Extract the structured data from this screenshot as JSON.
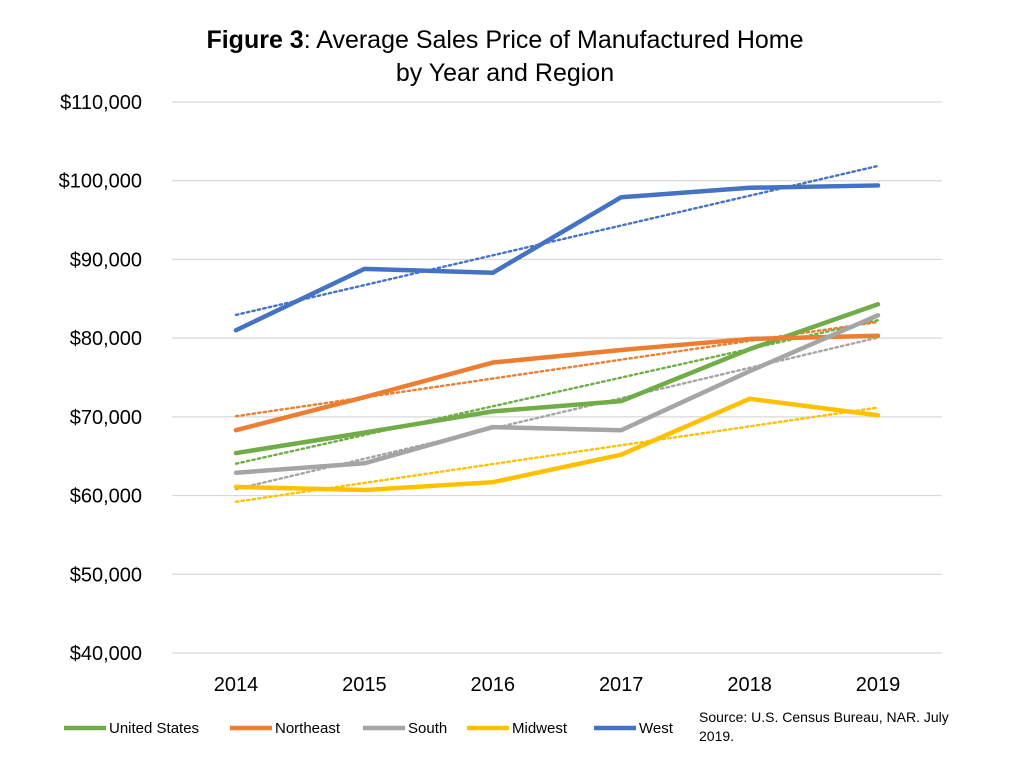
{
  "title": {
    "prefix": "Figure 3",
    "rest": ": Average Sales Price of Manufactured Home",
    "line2": "by Year and Region"
  },
  "source_note": "Source: U.S. Census Bureau, NAR. July 2019.",
  "chart_data": {
    "type": "line",
    "title": "Figure 3: Average Sales Price of Manufactured Home by Year and Region",
    "xlabel": "",
    "ylabel": "",
    "categories": [
      "2014",
      "2015",
      "2016",
      "2017",
      "2018",
      "2019"
    ],
    "ylim": [
      40000,
      110000
    ],
    "yticks": [
      40000,
      50000,
      60000,
      70000,
      80000,
      90000,
      100000,
      110000
    ],
    "ytick_labels": [
      "$40,000",
      "$50,000",
      "$60,000",
      "$70,000",
      "$80,000",
      "$90,000",
      "$100,000",
      "$110,000"
    ],
    "grid": true,
    "legend_position": "bottom",
    "trendlines": "linear, dotted, one per series",
    "series": [
      {
        "name": "United States",
        "color": "#70AD47",
        "values": [
          65400,
          68000,
          70700,
          72000,
          78600,
          84300
        ]
      },
      {
        "name": "Northeast",
        "color": "#ED7D31",
        "values": [
          68300,
          72500,
          76900,
          78500,
          79900,
          80300
        ]
      },
      {
        "name": "South",
        "color": "#A5A5A5",
        "values": [
          62900,
          64100,
          68700,
          68300,
          75800,
          82900
        ]
      },
      {
        "name": "Midwest",
        "color": "#FFC000",
        "values": [
          61100,
          60700,
          61700,
          65200,
          72300,
          70200
        ]
      },
      {
        "name": "West",
        "color": "#4472C4",
        "values": [
          81000,
          88800,
          88300,
          97900,
          99100,
          99400
        ]
      }
    ]
  }
}
